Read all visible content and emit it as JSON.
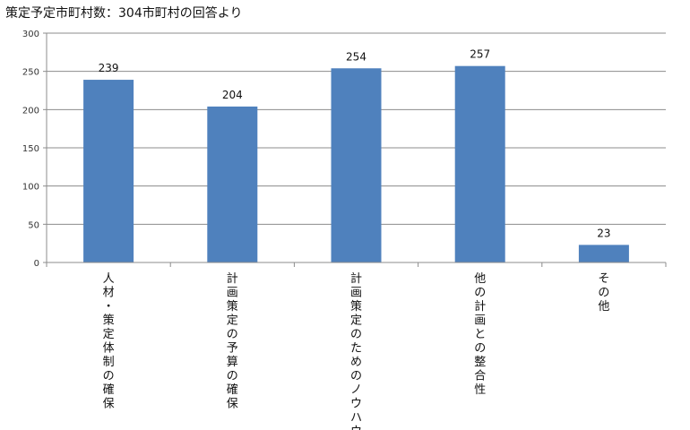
{
  "chart_data": {
    "type": "bar",
    "title": "策定予定市町村数：304市町村の回答より",
    "categories": [
      "人材・策定体制の確保",
      "計画策定の予算の確保",
      "計画策定のためのノウハウ",
      "他の計画との整合性",
      "その他"
    ],
    "values": [
      239,
      204,
      254,
      257,
      23
    ],
    "data_labels": [
      "239",
      "204",
      "254",
      "257",
      "23"
    ],
    "yticks": [
      "0",
      "50",
      "100",
      "150",
      "200",
      "250",
      "300"
    ],
    "ylim": [
      0,
      300
    ],
    "ytick_step": 50,
    "grid": true,
    "legend": "none",
    "bar_color": "#4F81BD"
  }
}
